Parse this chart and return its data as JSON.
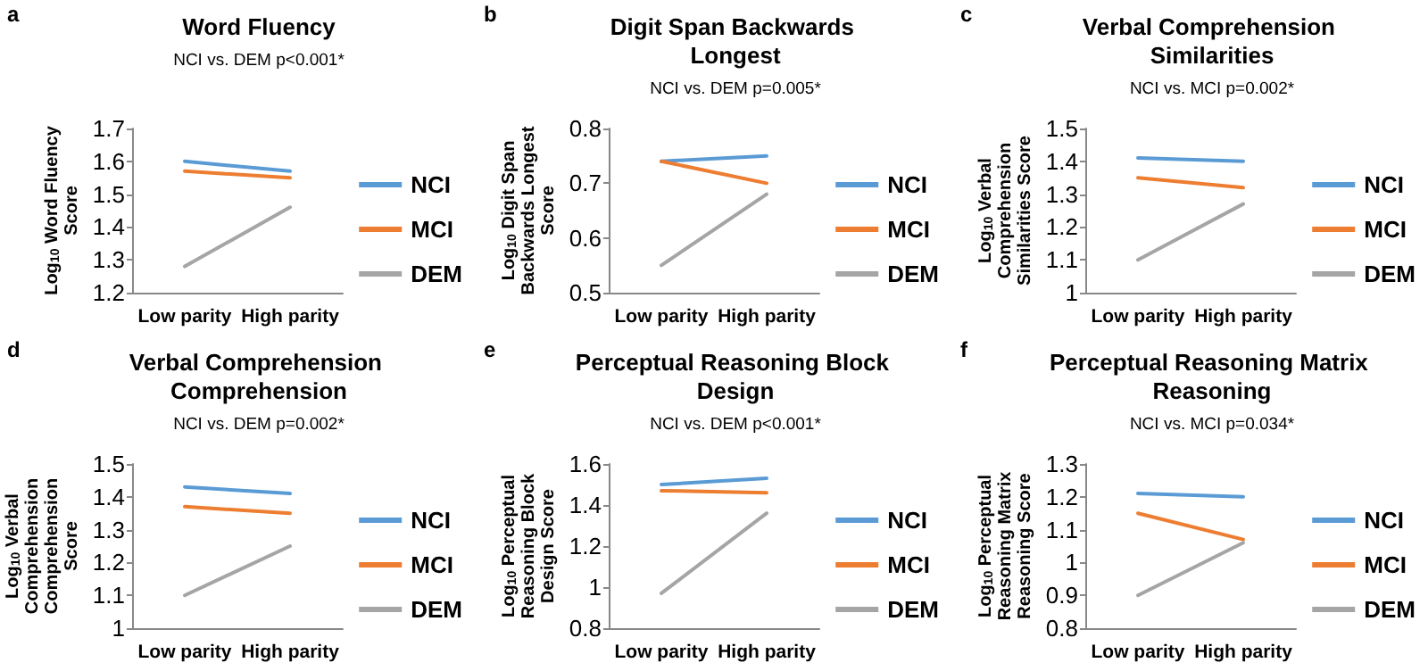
{
  "chart_data": [
    {
      "type": "line",
      "title": "Word Fluency",
      "subtitle": "NCI vs. DEM p<0.001*",
      "ylabel": "Log$_{10}$ Word Fluency Score",
      "annotations": [
        "a"
      ],
      "categories": [
        "Low parity",
        "High parity"
      ],
      "ylim": [
        1.2,
        1.7
      ],
      "yticks": [
        1.2,
        1.3,
        1.4,
        1.5,
        1.6,
        1.7
      ],
      "grid": false,
      "legend": "right",
      "marker": "none",
      "series": [
        {
          "name": "NCI",
          "color": "#5b9bd5",
          "values": [
            1.6,
            1.57
          ]
        },
        {
          "name": "MCI",
          "color": "#ed7d31",
          "values": [
            1.57,
            1.55
          ]
        },
        {
          "name": "DEM",
          "color": "#a5a5a5",
          "values": [
            1.28,
            1.46
          ]
        }
      ]
    },
    {
      "type": "line",
      "title": "Digit Span Backwards Longest",
      "subtitle": "NCI vs. DEM p=0.005*",
      "ylabel": "Log$_{10}$ Digit Span Backwards Longest Score",
      "annotations": [
        "b"
      ],
      "categories": [
        "Low parity",
        "High parity"
      ],
      "ylim": [
        0.5,
        0.8
      ],
      "yticks": [
        0.5,
        0.6,
        0.7,
        0.8
      ],
      "grid": false,
      "legend": "right",
      "marker": "none",
      "series": [
        {
          "name": "NCI",
          "color": "#5b9bd5",
          "values": [
            0.74,
            0.75
          ]
        },
        {
          "name": "MCI",
          "color": "#ed7d31",
          "values": [
            0.74,
            0.7
          ]
        },
        {
          "name": "DEM",
          "color": "#a5a5a5",
          "values": [
            0.55,
            0.68
          ]
        }
      ]
    },
    {
      "type": "line",
      "title": "Verbal Comprehension Similarities",
      "subtitle": "NCI vs. MCI p=0.002*",
      "ylabel": "Log$_{10}$ Verbal Comprehension Similarities Score",
      "annotations": [
        "c"
      ],
      "categories": [
        "Low parity",
        "High parity"
      ],
      "ylim": [
        1,
        1.5
      ],
      "yticks": [
        1,
        1.1,
        1.2,
        1.3,
        1.4,
        1.5
      ],
      "grid": false,
      "legend": "right",
      "marker": "none",
      "series": [
        {
          "name": "NCI",
          "color": "#5b9bd5",
          "values": [
            1.41,
            1.4
          ]
        },
        {
          "name": "MCI",
          "color": "#ed7d31",
          "values": [
            1.35,
            1.32
          ]
        },
        {
          "name": "DEM",
          "color": "#a5a5a5",
          "values": [
            1.1,
            1.27
          ]
        }
      ]
    },
    {
      "type": "line",
      "title": "Verbal Comprehension Comprehension",
      "subtitle": "NCI vs. DEM p=0.002*",
      "ylabel": "Log$_{10}$ Verbal Comprehension Comprehension Score",
      "annotations": [
        "d"
      ],
      "categories": [
        "Low parity",
        "High parity"
      ],
      "ylim": [
        1,
        1.5
      ],
      "yticks": [
        1,
        1.1,
        1.2,
        1.3,
        1.4,
        1.5
      ],
      "grid": false,
      "legend": "right",
      "marker": "none",
      "series": [
        {
          "name": "NCI",
          "color": "#5b9bd5",
          "values": [
            1.43,
            1.41
          ]
        },
        {
          "name": "MCI",
          "color": "#ed7d31",
          "values": [
            1.37,
            1.35
          ]
        },
        {
          "name": "DEM",
          "color": "#a5a5a5",
          "values": [
            1.1,
            1.25
          ]
        }
      ]
    },
    {
      "type": "line",
      "title": "Perceptual Reasoning Block Design",
      "subtitle": "NCI vs. DEM p<0.001*",
      "ylabel": "Log$_{10}$ Perceptual Reasoning Block Design Score",
      "annotations": [
        "e"
      ],
      "categories": [
        "Low parity",
        "High parity"
      ],
      "ylim": [
        0.8,
        1.6
      ],
      "yticks": [
        0.8,
        1,
        1.2,
        1.4,
        1.6
      ],
      "grid": false,
      "legend": "right",
      "marker": "none",
      "series": [
        {
          "name": "NCI",
          "color": "#5b9bd5",
          "values": [
            1.5,
            1.53
          ]
        },
        {
          "name": "MCI",
          "color": "#ed7d31",
          "values": [
            1.47,
            1.46
          ]
        },
        {
          "name": "DEM",
          "color": "#a5a5a5",
          "values": [
            0.97,
            1.36
          ]
        }
      ]
    },
    {
      "type": "line",
      "title": "Perceptual Reasoning Matrix Reasoning",
      "subtitle": "NCI vs. MCI p=0.034*",
      "ylabel": "Log$_{10}$ Perceptual Reasoning Matrix Reasoning Score",
      "annotations": [
        "f"
      ],
      "categories": [
        "Low parity",
        "High parity"
      ],
      "ylim": [
        0.8,
        1.3
      ],
      "yticks": [
        0.8,
        0.9,
        1,
        1.1,
        1.2,
        1.3
      ],
      "grid": false,
      "legend": "right",
      "marker": "none",
      "series": [
        {
          "name": "NCI",
          "color": "#5b9bd5",
          "values": [
            1.21,
            1.2
          ]
        },
        {
          "name": "MCI",
          "color": "#ed7d31",
          "values": [
            1.15,
            1.07
          ]
        },
        {
          "name": "DEM",
          "color": "#a5a5a5",
          "values": [
            0.9,
            1.06
          ]
        }
      ]
    }
  ]
}
